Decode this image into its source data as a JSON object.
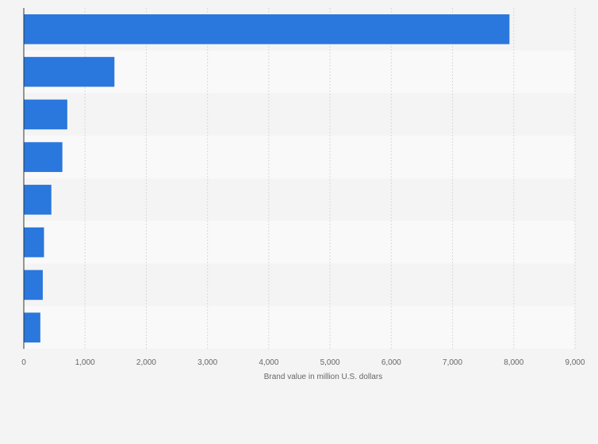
{
  "chart_data": {
    "type": "bar",
    "orientation": "horizontal",
    "title": "",
    "xlabel": "Brand value in million U.S. dollars",
    "ylabel": "",
    "categories": [
      "",
      "",
      "",
      "",
      "",
      "",
      "",
      ""
    ],
    "values": [
      7930,
      1480,
      710,
      630,
      450,
      330,
      310,
      270
    ],
    "xlim": [
      0,
      9000
    ],
    "xticks": [
      0,
      1000,
      2000,
      3000,
      4000,
      5000,
      6000,
      7000,
      8000,
      9000
    ],
    "xtick_labels": [
      "0",
      "1,000",
      "2,000",
      "3,000",
      "4,000",
      "5,000",
      "6,000",
      "7,000",
      "8,000",
      "9,000"
    ],
    "grid": true,
    "bar_color": "#2a77dd",
    "band_colors": [
      "#f4f4f4",
      "#f9f9f9"
    ]
  }
}
